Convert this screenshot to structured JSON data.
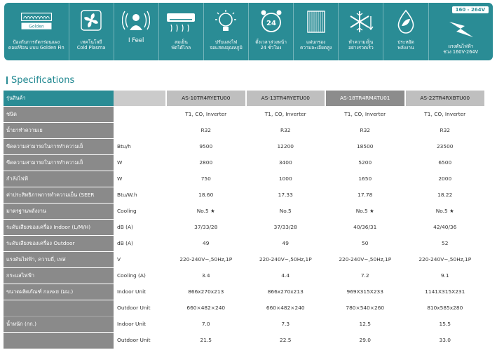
{
  "features": [
    {
      "id": "golden-fin",
      "caption": "ป้องกันการกัดกร่อนแผง\nคอยล์ร้อน แบบ Golden Fin",
      "badge": "Golden"
    },
    {
      "id": "cold-plasma",
      "caption": "เทคโนโลยี\nCold Plasma"
    },
    {
      "id": "i-feel",
      "caption": "I Feel"
    },
    {
      "id": "long-air",
      "caption": "ลมเย็น\nพัดได้ไกล"
    },
    {
      "id": "auto-light",
      "caption": "ปรับแสงไฟ\nจอแสดงอุณหภูมิ"
    },
    {
      "id": "timer",
      "caption": "ตั้งเวลาล่วงหน้า\n24 ชั่วโมง",
      "badge": "24"
    },
    {
      "id": "filter",
      "caption": "แผ่นกรอง\nความละเอียดสูง"
    },
    {
      "id": "fast-cool",
      "caption": "ทำความเย็น\nอย่างรวดเร็ว"
    },
    {
      "id": "energy-save",
      "caption": "ประหยัด\nพลังงาน"
    },
    {
      "id": "voltage",
      "caption": "แรงดันไฟฟ้า\nช่วง 160V-264V",
      "badge": "160 - 264V"
    }
  ],
  "section_title": "Specifications",
  "table": {
    "header_label": "รุ่นสินค้า",
    "models": [
      "AS-10TR4RYETU00",
      "AS-13TR4RYETU00",
      "AS-18TR4RMATU01",
      "AS-22TR4RXBTU00"
    ],
    "rows": [
      {
        "label": "ชนิด",
        "unit": "",
        "values": [
          "T1, CO, Inverter",
          "T1, CO, Inverter",
          "T1, CO, Inverter",
          "T1, CO, Inverter"
        ]
      },
      {
        "label": "น้ำยาทำความเย",
        "unit": "",
        "values": [
          "R32",
          "R32",
          "R32",
          "R32"
        ]
      },
      {
        "label": "ขีดความสามารถในการทำความเย็",
        "unit": "Btu/h",
        "values": [
          "9500",
          "12200",
          "18500",
          "23500"
        ]
      },
      {
        "label": "ขีดความสามารถในการทำความเย็",
        "unit": "W",
        "values": [
          "2800",
          "3400",
          "5200",
          "6500"
        ]
      },
      {
        "label": "กำลังไฟฟ้",
        "unit": "W",
        "values": [
          "750",
          "1000",
          "1650",
          "2000"
        ]
      },
      {
        "label": "ค่าประสิทธิภาพการทำความเย็น (SEER",
        "unit": "Btu/W.h",
        "values": [
          "18.60",
          "17.33",
          "17.78",
          "18.22"
        ]
      },
      {
        "label": "มาตรฐานพลังงาน",
        "unit": "Cooling",
        "values": [
          "No.5 ★",
          "No.5",
          "No.5 ★",
          "No.5 ★"
        ]
      },
      {
        "label": "ระดับเสียงของเครื่อง Indoor (L/M/H)",
        "unit": "dB (A)",
        "values": [
          "37/33/28",
          "37/33/28",
          "40/36/31",
          "42/40/36"
        ]
      },
      {
        "label": "ระดับเสียงของเครื่อง Outdoor",
        "unit": "dB (A)",
        "values": [
          "49",
          "49",
          "50",
          "52"
        ]
      },
      {
        "label": "แรงดันไฟฟ้า, ความถี่, เฟส",
        "unit": "V",
        "values": [
          "220-240V~,50Hz,1P",
          "220-240V~,50Hz,1P",
          "220-240V~,50Hz,1P",
          "220-240V~,50Hz,1P"
        ]
      },
      {
        "label": "กระแสไฟฟ้า",
        "unit": "Cooling (A)",
        "values": [
          "3.4",
          "4.4",
          "7.2",
          "9.1"
        ]
      },
      {
        "label": "ขนาดผลิตภัณฑ์ กxลxย (มม.)",
        "unit": "Indoor Unit",
        "values": [
          "866x270x213",
          "866x270x213",
          "969X315X233",
          "1141X315X231"
        ]
      },
      {
        "label": "",
        "unit": "Outdoor Unit",
        "values": [
          "660×482×240",
          "660×482×240",
          "780×540×260",
          "810x585x280"
        ]
      },
      {
        "label": "น้ำหนัก (กก.)",
        "unit": "Indoor Unit",
        "values": [
          "7.0",
          "7.3",
          "12.5",
          "15.5"
        ]
      },
      {
        "label": "",
        "unit": "Outdoor Unit",
        "values": [
          "21.5",
          "22.5",
          "29.0",
          "33.0"
        ]
      }
    ]
  },
  "colors": {
    "accent": "#2a8c95",
    "label_bg": "#8a8a8a",
    "header_grey": "#bfbfbf",
    "header_dark": "#8c8c8c"
  }
}
